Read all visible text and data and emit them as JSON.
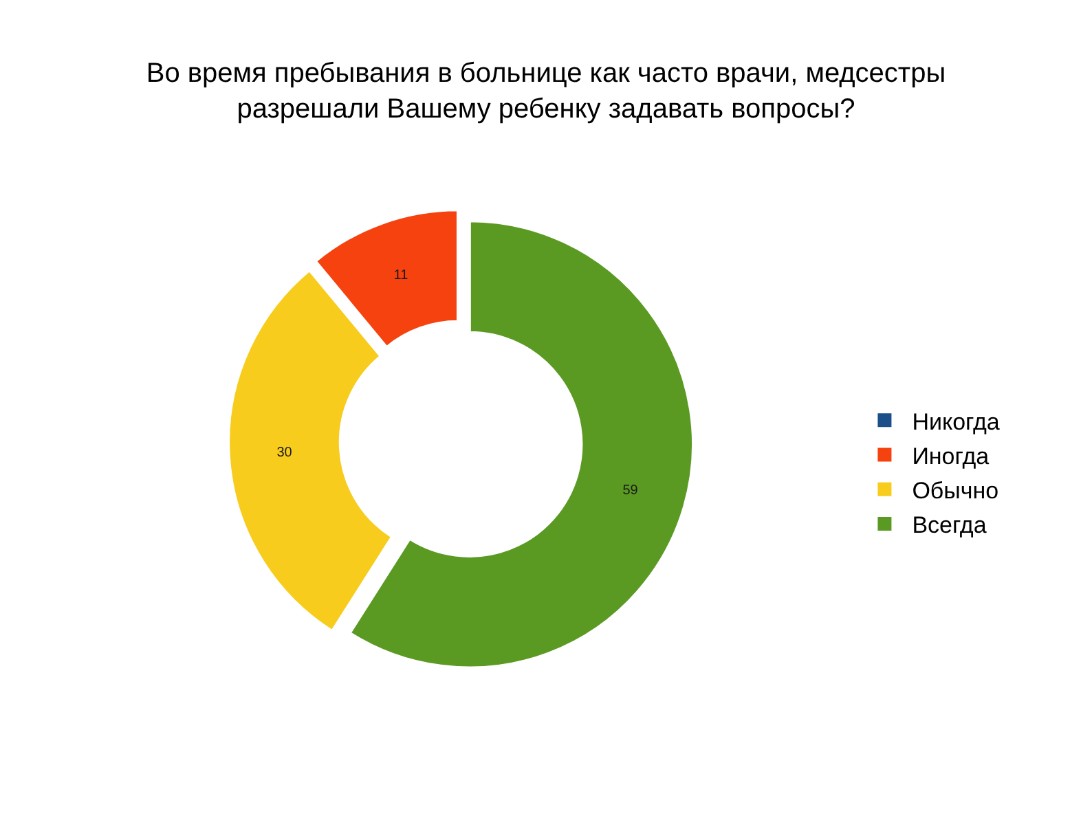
{
  "chart_data": {
    "type": "donut",
    "title": "Во время пребывания в больнице как часто врачи, медсестры\nразрешали Вашему ребенку задавать вопросы?",
    "categories": [
      "Никогда",
      "Иногда",
      "Обычно",
      "Всегда"
    ],
    "values": [
      0,
      11,
      30,
      59
    ],
    "colors": [
      "#1a4f8a",
      "#f5420f",
      "#f7cc1c",
      "#5a9a22"
    ],
    "value_labels": [
      null,
      "11",
      "30",
      "59"
    ],
    "legend": "right"
  }
}
